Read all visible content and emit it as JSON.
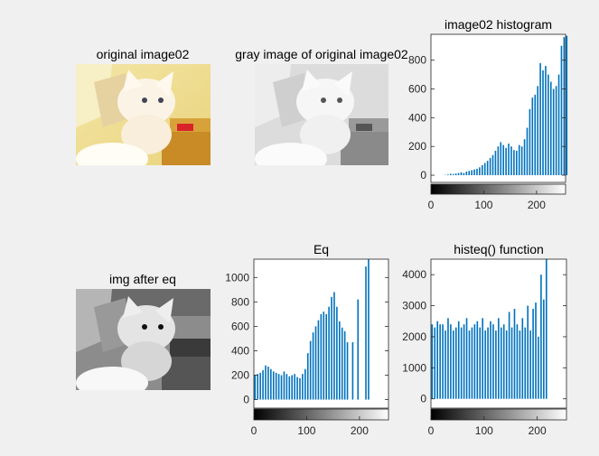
{
  "figure": {
    "titles": {
      "original": "original image02",
      "gray": "gray image of original image02",
      "hist": "image02 histogram",
      "after_eq": "img after eq",
      "eq": "Eq",
      "histeq": "histeq() function"
    }
  },
  "chart_data": [
    {
      "type": "bar",
      "title": "image02 histogram",
      "xlim": [
        0,
        255
      ],
      "ylim": [
        -50,
        980
      ],
      "xticks": [
        0,
        100,
        200
      ],
      "yticks": [
        0,
        200,
        400,
        600,
        800
      ],
      "colorbar": "grayscale",
      "series": [
        {
          "color": "#0072bd",
          "x_step": 5,
          "values": [
            0,
            0,
            0,
            0,
            0,
            2,
            5,
            10,
            8,
            12,
            15,
            20,
            15,
            25,
            30,
            35,
            40,
            45,
            55,
            70,
            85,
            100,
            120,
            140,
            170,
            200,
            230,
            210,
            190,
            220,
            200,
            175,
            170,
            210,
            200,
            250,
            330,
            460,
            540,
            560,
            620,
            780,
            730,
            760,
            700,
            650,
            600,
            620,
            700,
            900,
            960,
            970
          ]
        }
      ]
    },
    {
      "type": "bar",
      "title": "Eq",
      "xlim": [
        0,
        255
      ],
      "ylim": [
        -70,
        1150
      ],
      "xticks": [
        0,
        100,
        200
      ],
      "yticks": [
        0,
        200,
        400,
        600,
        800,
        1000
      ],
      "colorbar": "grayscale",
      "series": [
        {
          "color": "#0072bd",
          "x_step": 5,
          "values": [
            200,
            210,
            220,
            240,
            280,
            270,
            250,
            230,
            220,
            210,
            200,
            230,
            210,
            190,
            200,
            210,
            185,
            175,
            210,
            250,
            380,
            480,
            550,
            600,
            650,
            700,
            720,
            700,
            760,
            840,
            880,
            760,
            640,
            590,
            560,
            470,
            0,
            470,
            0,
            820,
            0,
            0,
            1090,
            1150,
            0,
            0,
            0,
            0,
            0,
            0,
            0,
            0
          ]
        }
      ]
    },
    {
      "type": "bar",
      "title": "histeq() function",
      "xlim": [
        0,
        255
      ],
      "ylim": [
        -300,
        4500
      ],
      "xticks": [
        0,
        100,
        200
      ],
      "yticks": [
        0,
        1000,
        2000,
        3000,
        4000
      ],
      "colorbar": "grayscale",
      "series": [
        {
          "color": "#0072bd",
          "x_step": 5,
          "values": [
            2400,
            2300,
            2500,
            2400,
            2400,
            2200,
            2600,
            2400,
            2200,
            2300,
            2500,
            2300,
            2400,
            2600,
            2200,
            2300,
            2400,
            2500,
            2300,
            2600,
            2200,
            2300,
            2500,
            2400,
            2200,
            2600,
            2300,
            2400,
            2200,
            2800,
            2300,
            2900,
            2400,
            2200,
            2600,
            2300,
            3000,
            2200,
            2900,
            3100,
            2000,
            4000,
            3200,
            4500,
            0,
            0,
            0,
            0,
            0,
            0,
            0,
            0
          ]
        }
      ]
    }
  ]
}
